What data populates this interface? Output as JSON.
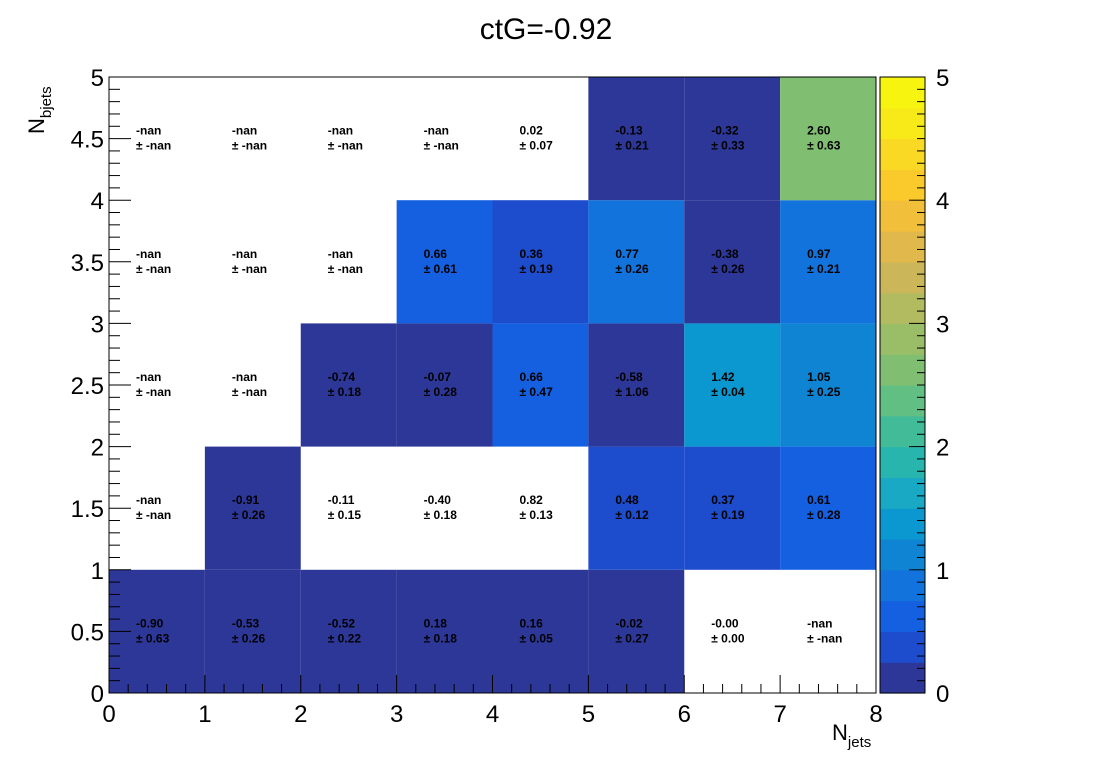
{
  "chart_data": {
    "type": "heatmap",
    "title": "ctG=-0.92",
    "xlabel_main": "N",
    "xlabel_sub": "jets",
    "ylabel_main": "N",
    "ylabel_sub": "bjets",
    "x_ticks": [
      "0",
      "1",
      "2",
      "3",
      "4",
      "5",
      "6",
      "7",
      "8"
    ],
    "y_ticks": [
      "0",
      "0.5",
      "1",
      "1.5",
      "2",
      "2.5",
      "3",
      "3.5",
      "4",
      "4.5",
      "5"
    ],
    "z_ticks": [
      "0",
      "1",
      "2",
      "3",
      "4",
      "5"
    ],
    "xlim": [
      0,
      8
    ],
    "ylim": [
      0,
      5
    ],
    "zlim": [
      0,
      5
    ],
    "colormap": [
      "#2c3797",
      "#1d4ccd",
      "#1560e0",
      "#1173db",
      "#0f84d3",
      "#0b98d0",
      "#1aa9c4",
      "#28b5ad",
      "#41bb98",
      "#62bf83",
      "#80bf72",
      "#9abd67",
      "#b3bb60",
      "#cbb75a",
      "#e1b84c",
      "#f2bf3a",
      "#fac92c",
      "#f9d923",
      "#f7ea18",
      "#f7f50f"
    ],
    "rows": [
      {
        "y_bin": [
          0,
          1
        ],
        "cells": [
          {
            "value": "-0.90",
            "error": "± 0.63",
            "z": -0.9
          },
          {
            "value": "-0.53",
            "error": "± 0.26",
            "z": -0.53
          },
          {
            "value": "-0.52",
            "error": "± 0.22",
            "z": -0.52
          },
          {
            "value": "0.18",
            "error": "± 0.18",
            "z": 0.18
          },
          {
            "value": "0.16",
            "error": "± 0.05",
            "z": 0.16
          },
          {
            "value": "-0.02",
            "error": "± 0.27",
            "z": -0.02
          },
          {
            "value": "-0.00",
            "error": "± 0.00",
            "z": null
          },
          {
            "value": "-nan",
            "error": "± -nan",
            "z": null
          }
        ]
      },
      {
        "y_bin": [
          1,
          2
        ],
        "cells": [
          {
            "value": "-nan",
            "error": "± -nan",
            "z": null
          },
          {
            "value": "-0.91",
            "error": "± 0.26",
            "z": -0.91
          },
          {
            "value": "-0.11",
            "error": "± 0.15",
            "z": null
          },
          {
            "value": "-0.40",
            "error": "± 0.18",
            "z": null
          },
          {
            "value": "0.82",
            "error": "± 0.13",
            "z": null
          },
          {
            "value": "0.48",
            "error": "± 0.12",
            "z": 0.48
          },
          {
            "value": "0.37",
            "error": "± 0.19",
            "z": 0.37
          },
          {
            "value": "0.61",
            "error": "± 0.28",
            "z": 0.61
          }
        ]
      },
      {
        "y_bin": [
          2,
          3
        ],
        "cells": [
          {
            "value": "-nan",
            "error": "± -nan",
            "z": null
          },
          {
            "value": "-nan",
            "error": "± -nan",
            "z": null
          },
          {
            "value": "-0.74",
            "error": "± 0.18",
            "z": -0.74
          },
          {
            "value": "-0.07",
            "error": "± 0.28",
            "z": -0.07
          },
          {
            "value": "0.66",
            "error": "± 0.47",
            "z": 0.66
          },
          {
            "value": "-0.58",
            "error": "± 1.06",
            "z": -0.58
          },
          {
            "value": "1.42",
            "error": "± 0.04",
            "z": 1.42
          },
          {
            "value": "1.05",
            "error": "± 0.25",
            "z": 1.05
          }
        ]
      },
      {
        "y_bin": [
          3,
          4
        ],
        "cells": [
          {
            "value": "-nan",
            "error": "± -nan",
            "z": null
          },
          {
            "value": "-nan",
            "error": "± -nan",
            "z": null
          },
          {
            "value": "-nan",
            "error": "± -nan",
            "z": null
          },
          {
            "value": "0.66",
            "error": "± 0.61",
            "z": 0.66
          },
          {
            "value": "0.36",
            "error": "± 0.19",
            "z": 0.36
          },
          {
            "value": "0.77",
            "error": "± 0.26",
            "z": 0.77
          },
          {
            "value": "-0.38",
            "error": "± 0.26",
            "z": -0.38
          },
          {
            "value": "0.97",
            "error": "± 0.21",
            "z": 0.97
          }
        ]
      },
      {
        "y_bin": [
          4,
          5
        ],
        "cells": [
          {
            "value": "-nan",
            "error": "± -nan",
            "z": null
          },
          {
            "value": "-nan",
            "error": "± -nan",
            "z": null
          },
          {
            "value": "-nan",
            "error": "± -nan",
            "z": null
          },
          {
            "value": "-nan",
            "error": "± -nan",
            "z": null
          },
          {
            "value": "0.02",
            "error": "± 0.07",
            "z": null
          },
          {
            "value": "-0.13",
            "error": "± 0.21",
            "z": -0.13
          },
          {
            "value": "-0.32",
            "error": "± 0.33",
            "z": -0.32
          },
          {
            "value": "2.60",
            "error": "± 0.63",
            "z": 2.6
          }
        ]
      }
    ]
  }
}
